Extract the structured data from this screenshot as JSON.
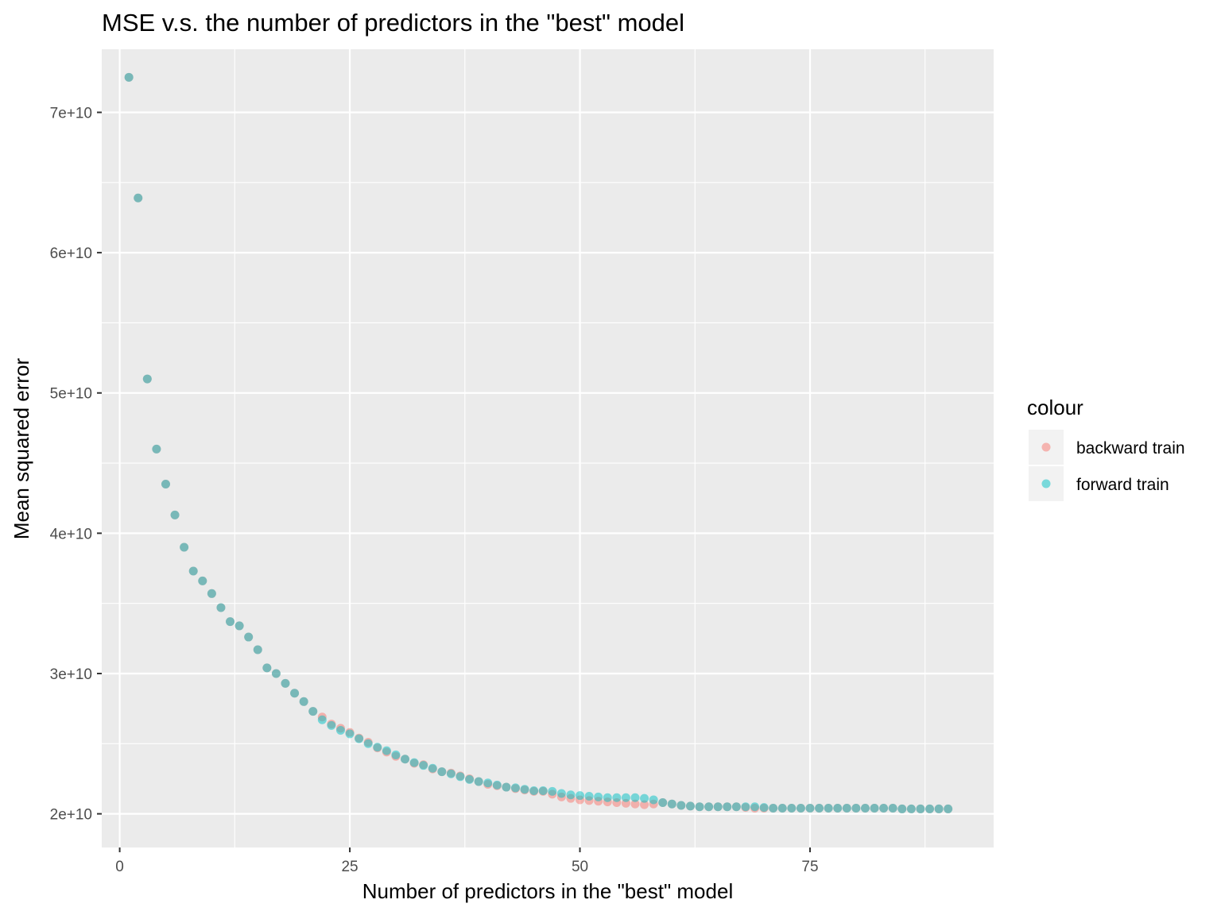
{
  "chart_data": {
    "type": "scatter",
    "title": "MSE v.s. the number of predictors in the \"best\" model",
    "xlabel": "Number of predictors in the \"best\" model",
    "ylabel": "Mean squared error",
    "xlim": [
      -1.95,
      94.95
    ],
    "ylim": [
      17600000000.0,
      74500000000.0
    ],
    "x_ticks": [
      0,
      25,
      50,
      75
    ],
    "x_tick_labels": [
      "0",
      "25",
      "50",
      "75"
    ],
    "y_ticks": [
      20000000000,
      30000000000,
      40000000000,
      50000000000,
      60000000000,
      70000000000
    ],
    "y_tick_labels": [
      "2e+10",
      "3e+10",
      "4e+10",
      "5e+10",
      "6e+10",
      "7e+10"
    ],
    "grid": true,
    "legend": {
      "title": "colour",
      "placement": "right",
      "entries": [
        "backward train",
        "forward train"
      ]
    },
    "series": [
      {
        "name": "backward train",
        "color": "#F8766D",
        "x": [
          1,
          2,
          3,
          4,
          5,
          6,
          7,
          8,
          9,
          10,
          11,
          12,
          13,
          14,
          15,
          16,
          17,
          18,
          19,
          20,
          21,
          22,
          23,
          24,
          25,
          26,
          27,
          28,
          29,
          30,
          31,
          32,
          33,
          34,
          35,
          36,
          37,
          38,
          39,
          40,
          41,
          42,
          43,
          44,
          45,
          46,
          47,
          48,
          49,
          50,
          51,
          52,
          53,
          54,
          55,
          56,
          57,
          58,
          59,
          60,
          61,
          62,
          63,
          64,
          65,
          66,
          67,
          68,
          69,
          70,
          71,
          72,
          73,
          74,
          75,
          76,
          77,
          78,
          79,
          80,
          81,
          82,
          83,
          84,
          85,
          86,
          87,
          88,
          89,
          90
        ],
        "y": [
          72500000000.0,
          63900000000.0,
          51000000000.0,
          46000000000.0,
          43500000000.0,
          41300000000.0,
          39000000000.0,
          37300000000.0,
          36600000000.0,
          35700000000.0,
          34700000000.0,
          33700000000.0,
          33400000000.0,
          32600000000.0,
          31700000000.0,
          30400000000.0,
          30000000000.0,
          29300000000.0,
          28600000000.0,
          28000000000.0,
          27300000000.0,
          26900000000.0,
          26400000000.0,
          26100000000.0,
          25800000000.0,
          25400000000.0,
          25100000000.0,
          24700000000.0,
          24400000000.0,
          24100000000.0,
          23900000000.0,
          23600000000.0,
          23500000000.0,
          23200000000.0,
          23000000000.0,
          22900000000.0,
          22700000000.0,
          22500000000.0,
          22300000000.0,
          22100000000.0,
          22000000000.0,
          21900000000.0,
          21800000000.0,
          21700000000.0,
          21600000000.0,
          21600000000.0,
          21400000000.0,
          21200000000.0,
          21100000000.0,
          21000000000.0,
          20950000000.0,
          20900000000.0,
          20850000000.0,
          20800000000.0,
          20750000000.0,
          20700000000.0,
          20650000000.0,
          20700000000.0,
          20800000000.0,
          20700000000.0,
          20600000000.0,
          20550000000.0,
          20500000000.0,
          20500000000.0,
          20500000000.0,
          20500000000.0,
          20500000000.0,
          20450000000.0,
          20400000000.0,
          20400000000.0,
          20400000000.0,
          20400000000.0,
          20400000000.0,
          20400000000.0,
          20400000000.0,
          20400000000.0,
          20400000000.0,
          20400000000.0,
          20400000000.0,
          20400000000.0,
          20400000000.0,
          20400000000.0,
          20400000000.0,
          20400000000.0,
          20350000000.0,
          20350000000.0,
          20350000000.0,
          20350000000.0,
          20350000000.0,
          20350000000.0
        ]
      },
      {
        "name": "forward train",
        "color": "#00BFC4",
        "x": [
          1,
          2,
          3,
          4,
          5,
          6,
          7,
          8,
          9,
          10,
          11,
          12,
          13,
          14,
          15,
          16,
          17,
          18,
          19,
          20,
          21,
          22,
          23,
          24,
          25,
          26,
          27,
          28,
          29,
          30,
          31,
          32,
          33,
          34,
          35,
          36,
          37,
          38,
          39,
          40,
          41,
          42,
          43,
          44,
          45,
          46,
          47,
          48,
          49,
          50,
          51,
          52,
          53,
          54,
          55,
          56,
          57,
          58,
          59,
          60,
          61,
          62,
          63,
          64,
          65,
          66,
          67,
          68,
          69,
          70,
          71,
          72,
          73,
          74,
          75,
          76,
          77,
          78,
          79,
          80,
          81,
          82,
          83,
          84,
          85,
          86,
          87,
          88,
          89,
          90
        ],
        "y": [
          72500000000.0,
          63900000000.0,
          51000000000.0,
          46000000000.0,
          43500000000.0,
          41300000000.0,
          39000000000.0,
          37300000000.0,
          36600000000.0,
          35700000000.0,
          34700000000.0,
          33700000000.0,
          33400000000.0,
          32600000000.0,
          31700000000.0,
          30400000000.0,
          30000000000.0,
          29300000000.0,
          28600000000.0,
          28000000000.0,
          27300000000.0,
          26700000000.0,
          26300000000.0,
          25950000000.0,
          25700000000.0,
          25350000000.0,
          25000000000.0,
          24750000000.0,
          24500000000.0,
          24200000000.0,
          23900000000.0,
          23650000000.0,
          23450000000.0,
          23250000000.0,
          23000000000.0,
          22850000000.0,
          22650000000.0,
          22450000000.0,
          22300000000.0,
          22200000000.0,
          22050000000.0,
          21900000000.0,
          21850000000.0,
          21750000000.0,
          21650000000.0,
          21650000000.0,
          21600000000.0,
          21450000000.0,
          21350000000.0,
          21300000000.0,
          21250000000.0,
          21200000000.0,
          21150000000.0,
          21150000000.0,
          21150000000.0,
          21150000000.0,
          21100000000.0,
          21000000000.0,
          20800000000.0,
          20700000000.0,
          20600000000.0,
          20550000000.0,
          20500000000.0,
          20500000000.0,
          20500000000.0,
          20500000000.0,
          20500000000.0,
          20500000000.0,
          20500000000.0,
          20450000000.0,
          20400000000.0,
          20400000000.0,
          20400000000.0,
          20400000000.0,
          20400000000.0,
          20400000000.0,
          20400000000.0,
          20400000000.0,
          20400000000.0,
          20400000000.0,
          20400000000.0,
          20400000000.0,
          20400000000.0,
          20400000000.0,
          20350000000.0,
          20350000000.0,
          20350000000.0,
          20350000000.0,
          20350000000.0,
          20350000000.0
        ]
      }
    ]
  }
}
